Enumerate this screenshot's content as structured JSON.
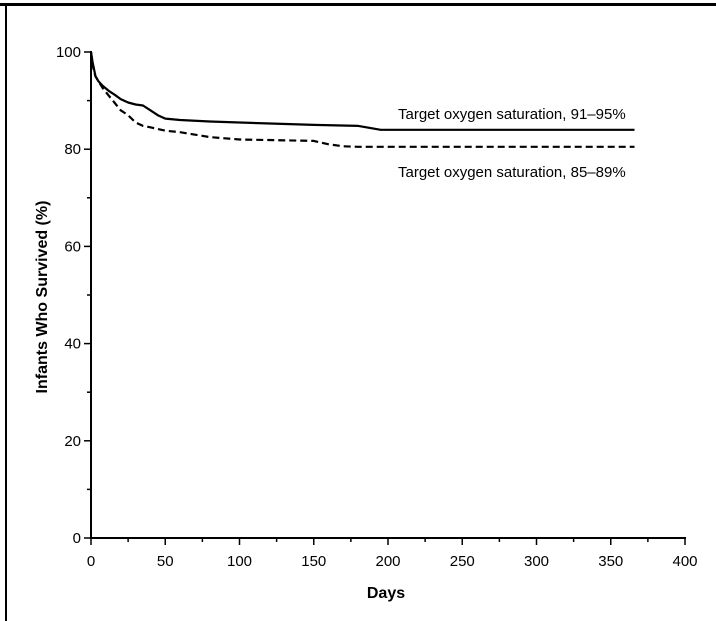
{
  "chart_data": {
    "type": "line",
    "title": "",
    "xlabel": "Days",
    "ylabel": "Infants Who Survived (%)",
    "xlim": [
      0,
      400
    ],
    "ylim": [
      0,
      100
    ],
    "x_ticks": [
      "0",
      "50",
      "100",
      "150",
      "200",
      "250",
      "300",
      "350",
      "400"
    ],
    "y_ticks": [
      "0",
      "20",
      "40",
      "60",
      "80",
      "100"
    ],
    "grid": false,
    "series": [
      {
        "name": "Target oxygen saturation, 91–95%",
        "style": "solid",
        "color": "#000000",
        "x": [
          0,
          1,
          2,
          3,
          5,
          8,
          12,
          16,
          20,
          25,
          30,
          35,
          40,
          45,
          50,
          60,
          80,
          100,
          150,
          180,
          195,
          250,
          300,
          366
        ],
        "y": [
          100,
          98,
          96.5,
          95,
          94,
          93,
          92,
          91.2,
          90.3,
          89.6,
          89.2,
          89,
          88,
          87,
          86.3,
          86,
          85.7,
          85.5,
          85,
          84.8,
          84,
          84,
          84,
          84
        ]
      },
      {
        "name": "Target oxygen saturation, 85–89%",
        "style": "dashed",
        "color": "#000000",
        "x": [
          0,
          1,
          2,
          3,
          5,
          8,
          12,
          16,
          20,
          25,
          30,
          35,
          40,
          50,
          60,
          80,
          100,
          150,
          160,
          170,
          180,
          250,
          300,
          366
        ],
        "y": [
          100,
          97.5,
          96,
          95,
          94,
          92.5,
          91,
          89.5,
          88,
          87,
          85.5,
          84.8,
          84.5,
          83.8,
          83.5,
          82.5,
          82,
          81.7,
          81,
          80.6,
          80.5,
          80.5,
          80.5,
          80.5
        ]
      }
    ]
  }
}
